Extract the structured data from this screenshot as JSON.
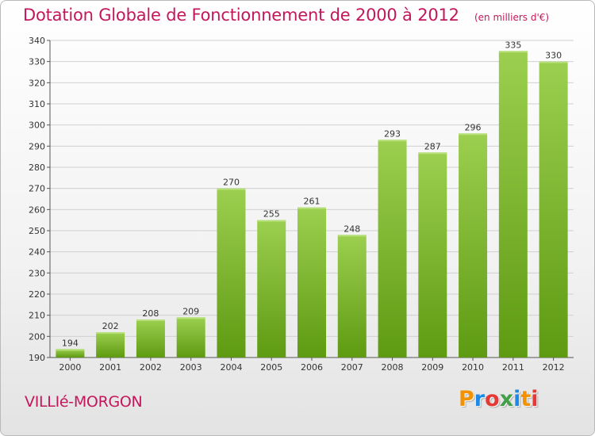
{
  "chart_data": {
    "type": "bar",
    "title": "Dotation Globale de Fonctionnement de 2000 à 2012",
    "unit_label": "(en milliers d'€)",
    "categories": [
      "2000",
      "2001",
      "2002",
      "2003",
      "2004",
      "2005",
      "2006",
      "2007",
      "2008",
      "2009",
      "2010",
      "2011",
      "2012"
    ],
    "values": [
      194,
      202,
      208,
      209,
      270,
      255,
      261,
      248,
      293,
      287,
      296,
      335,
      330
    ],
    "ylim": [
      190,
      340
    ],
    "yticks": [
      190,
      200,
      210,
      220,
      230,
      240,
      250,
      260,
      270,
      280,
      290,
      300,
      310,
      320,
      330,
      340
    ],
    "grid": true,
    "bar_color_top": "#9ccf4f",
    "bar_color_bottom": "#5e9a12"
  },
  "footer": {
    "commune": "VILLIé-MORGON",
    "brand": [
      "P",
      "r",
      "o",
      "x",
      "i",
      "t",
      "i"
    ],
    "brand_colors": [
      "#f39200",
      "#1e88e5",
      "#e53935",
      "#43a047",
      "#1e88e5",
      "#f39200",
      "#e53935"
    ]
  },
  "colors": {
    "title": "#c2185b",
    "grid": "#d0d0d0"
  }
}
